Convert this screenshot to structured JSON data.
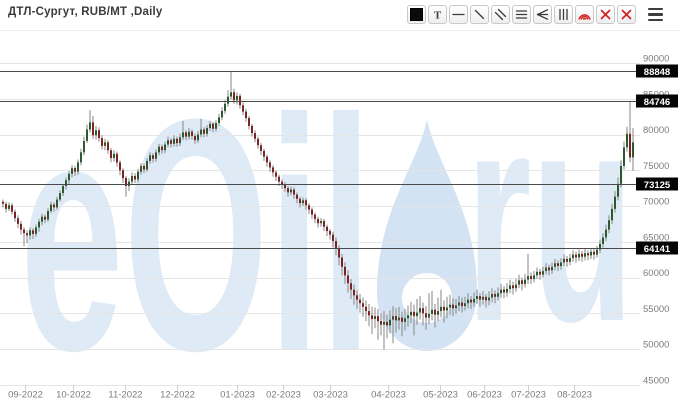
{
  "header": {
    "title": "ДТЛ-Сургут, RUB/MT ,Daily"
  },
  "toolbar": {
    "buttons": [
      {
        "name": "color-swatch-button",
        "icon": "black-square-icon"
      },
      {
        "name": "text-tool-button",
        "icon": "text-icon",
        "label": "T"
      },
      {
        "name": "horizontal-line-tool-button",
        "icon": "horizontal-line-icon"
      },
      {
        "name": "trend-line-tool-button",
        "icon": "trend-line-icon"
      },
      {
        "name": "parallel-channel-tool-button",
        "icon": "parallel-lines-icon"
      },
      {
        "name": "fib-levels-tool-button",
        "icon": "horizontal-levels-icon"
      },
      {
        "name": "fan-lines-tool-button",
        "icon": "fan-lines-icon"
      },
      {
        "name": "vertical-lines-tool-button",
        "icon": "vertical-lines-icon"
      },
      {
        "name": "fib-arcs-tool-button",
        "icon": "arcs-icon"
      },
      {
        "name": "delete-drawing-button",
        "icon": "red-cross-icon"
      },
      {
        "name": "delete-all-drawings-button",
        "icon": "red-cross-icon"
      }
    ],
    "menu": {
      "name": "menu-button",
      "icon": "hamburger-icon"
    }
  },
  "watermark": {
    "left": "eOil",
    "right": "ru"
  },
  "colors": {
    "candle_up": "#2d5a2d",
    "candle_down": "#7d2323",
    "wick": "#858585",
    "grid": "#e5e5e5",
    "level_line": "#4a4a4a",
    "tag_bg": "#050505",
    "tag_text": "#ffffff",
    "axis_text": "#7c7c7c",
    "toolbar_red": "#d41f1f",
    "watermark_text": "#dbe8f6",
    "watermark_drop": "#cfe1f2"
  },
  "chart_data": {
    "type": "candlestick",
    "title": "ДТЛ-Сургут, RUB/MT ,Daily",
    "instrument": "ДТЛ-Сургут",
    "unit": "RUB/MT",
    "timeframe": "Daily",
    "grid": true,
    "legend_position": "none",
    "y_axis": {
      "min": 45000,
      "max": 90000,
      "step": 5000,
      "ticks": [
        90000,
        85000,
        80000,
        75000,
        70000,
        65000,
        60000,
        55000,
        50000,
        45000
      ]
    },
    "x_axis": {
      "labels": [
        "09-2022",
        "10-2022",
        "11-2022",
        "12-2022",
        "01-2023",
        "02-2023",
        "03-2023",
        "04-2023",
        "05-2023",
        "06-2023",
        "07-2023",
        "08-2023"
      ],
      "tick_x": [
        25,
        73,
        125,
        177,
        237,
        283,
        330,
        388,
        440,
        484,
        528,
        574
      ]
    },
    "levels": [
      {
        "price": 88848,
        "label": "88848"
      },
      {
        "price": 84746,
        "label": "84746"
      },
      {
        "price": 73125,
        "label": "73125"
      },
      {
        "price": 64141,
        "label": "64141"
      }
    ],
    "candles": {
      "first_open": 70600,
      "format": [
        "close",
        "high",
        "low"
      ],
      "open_rule": "open equals previous close",
      "data": [
        [
          70300,
          70900,
          69800
        ],
        [
          69600,
          70600,
          69100
        ],
        [
          70100,
          70500,
          69300
        ],
        [
          69200,
          70400,
          68800
        ],
        [
          68300,
          69500,
          67800
        ],
        [
          67500,
          68700,
          66900
        ],
        [
          66700,
          67900,
          66000
        ],
        [
          66200,
          67000,
          64400
        ],
        [
          65900,
          66600,
          64800
        ],
        [
          66600,
          67000,
          65300
        ],
        [
          66100,
          66900,
          65400
        ],
        [
          67000,
          67400,
          65700
        ],
        [
          67800,
          68200,
          66400
        ],
        [
          68500,
          68900,
          67300
        ],
        [
          68100,
          68800,
          67600
        ],
        [
          69300,
          69700,
          67800
        ],
        [
          70200,
          70600,
          69000
        ],
        [
          69800,
          70500,
          69200
        ],
        [
          70900,
          71300,
          69500
        ],
        [
          71800,
          72200,
          70600
        ],
        [
          72800,
          73100,
          71400
        ],
        [
          73600,
          74000,
          72300
        ],
        [
          74500,
          74900,
          73100
        ],
        [
          75300,
          75700,
          74000
        ],
        [
          74800,
          75600,
          74200
        ],
        [
          76100,
          76500,
          74400
        ],
        [
          77500,
          78000,
          75700
        ],
        [
          79100,
          79700,
          77100
        ],
        [
          80700,
          81400,
          78800
        ],
        [
          81700,
          83400,
          80300
        ],
        [
          79900,
          82600,
          79400
        ],
        [
          80600,
          81200,
          79300
        ],
        [
          79500,
          81000,
          79000
        ],
        [
          78400,
          79900,
          77900
        ],
        [
          78900,
          79400,
          77800
        ],
        [
          77800,
          79200,
          77300
        ],
        [
          76700,
          78100,
          76100
        ],
        [
          77300,
          77800,
          76200
        ],
        [
          76100,
          77600,
          75500
        ],
        [
          75000,
          76400,
          74300
        ],
        [
          73900,
          75300,
          73200
        ],
        [
          72800,
          74200,
          71300
        ],
        [
          73400,
          73900,
          72100
        ],
        [
          74200,
          74700,
          73000
        ],
        [
          73700,
          74600,
          73200
        ],
        [
          74800,
          75200,
          73300
        ],
        [
          75600,
          76000,
          74400
        ],
        [
          75100,
          75900,
          74600
        ],
        [
          76300,
          76700,
          74800
        ],
        [
          77100,
          77500,
          75900
        ],
        [
          76600,
          77400,
          76100
        ],
        [
          77500,
          77900,
          76200
        ],
        [
          78300,
          78700,
          77100
        ],
        [
          77800,
          78600,
          77300
        ],
        [
          78600,
          79000,
          77400
        ],
        [
          79200,
          79700,
          78200
        ],
        [
          78700,
          79500,
          78200
        ],
        [
          79400,
          79900,
          78300
        ],
        [
          78800,
          79700,
          78300
        ],
        [
          79600,
          80100,
          78400
        ],
        [
          80300,
          81900,
          79200
        ],
        [
          79700,
          80600,
          79200
        ],
        [
          80400,
          80900,
          79300
        ],
        [
          79800,
          80700,
          79300
        ],
        [
          79200,
          80100,
          78700
        ],
        [
          80000,
          80500,
          78800
        ],
        [
          80700,
          82200,
          79600
        ],
        [
          80100,
          81000,
          79600
        ],
        [
          80900,
          81300,
          79700
        ],
        [
          81500,
          81900,
          80500
        ],
        [
          80800,
          81700,
          80300
        ],
        [
          81600,
          82000,
          80400
        ],
        [
          82400,
          82900,
          81200
        ],
        [
          83300,
          83800,
          82000
        ],
        [
          84300,
          84800,
          82900
        ],
        [
          85300,
          86200,
          83900
        ],
        [
          85900,
          88800,
          84900
        ],
        [
          84800,
          86400,
          84300
        ],
        [
          85400,
          85900,
          84200
        ],
        [
          84100,
          85700,
          83600
        ],
        [
          83200,
          84500,
          82700
        ],
        [
          82300,
          83600,
          81800
        ],
        [
          81200,
          82600,
          80700
        ],
        [
          80200,
          81500,
          79700
        ],
        [
          79400,
          80600,
          78900
        ],
        [
          78500,
          79700,
          78000
        ],
        [
          77700,
          78800,
          77100
        ],
        [
          76900,
          78000,
          76300
        ],
        [
          76100,
          77200,
          75500
        ],
        [
          75400,
          76400,
          74800
        ],
        [
          74700,
          75700,
          74100
        ],
        [
          74100,
          75000,
          73500
        ],
        [
          73400,
          74400,
          72800
        ],
        [
          73000,
          73700,
          72400
        ],
        [
          72500,
          73300,
          72000
        ],
        [
          71900,
          72800,
          71300
        ],
        [
          72300,
          72700,
          71500
        ],
        [
          71600,
          72600,
          71000
        ],
        [
          71000,
          71900,
          70400
        ],
        [
          70400,
          71300,
          69800
        ],
        [
          70800,
          71200,
          70000
        ],
        [
          70100,
          71100,
          69500
        ],
        [
          69500,
          70400,
          68900
        ],
        [
          68800,
          69800,
          68200
        ],
        [
          68200,
          69100,
          67600
        ],
        [
          67600,
          68500,
          67000
        ],
        [
          67900,
          68300,
          67100
        ],
        [
          67100,
          68200,
          66500
        ],
        [
          66500,
          67400,
          65800
        ],
        [
          66000,
          66800,
          65300
        ],
        [
          65100,
          66400,
          64200
        ],
        [
          64000,
          65600,
          63100
        ],
        [
          62800,
          64500,
          61700
        ],
        [
          61500,
          63300,
          60300
        ],
        [
          60300,
          62100,
          59100
        ],
        [
          59200,
          61000,
          57900
        ],
        [
          58300,
          59800,
          57000
        ],
        [
          57500,
          59000,
          56200
        ],
        [
          56900,
          58200,
          55600
        ],
        [
          56400,
          57700,
          55100
        ],
        [
          55900,
          57200,
          54500
        ],
        [
          55300,
          56800,
          53900
        ],
        [
          54700,
          56300,
          53200
        ],
        [
          54200,
          55900,
          52100
        ],
        [
          54600,
          55800,
          52900
        ],
        [
          53900,
          55600,
          51300
        ],
        [
          53400,
          55000,
          51900
        ],
        [
          53800,
          55300,
          49900
        ],
        [
          53300,
          54800,
          51500
        ],
        [
          54100,
          55400,
          52200
        ],
        [
          54600,
          56000,
          50800
        ],
        [
          54000,
          55700,
          52300
        ],
        [
          54400,
          55900,
          52700
        ],
        [
          53800,
          55200,
          51800
        ],
        [
          54300,
          55600,
          52600
        ],
        [
          54700,
          56100,
          53100
        ],
        [
          55200,
          56600,
          53600
        ],
        [
          54600,
          56200,
          51900
        ],
        [
          55100,
          57000,
          53400
        ],
        [
          55700,
          57400,
          54100
        ],
        [
          55000,
          56500,
          53300
        ],
        [
          54400,
          56000,
          52700
        ],
        [
          54900,
          57800,
          53500
        ],
        [
          55500,
          58100,
          54000
        ],
        [
          54800,
          56300,
          53000
        ],
        [
          55300,
          57200,
          53900
        ],
        [
          55900,
          58300,
          54400
        ],
        [
          55400,
          56800,
          53700
        ],
        [
          55800,
          57300,
          54300
        ],
        [
          56200,
          57600,
          54800
        ],
        [
          55700,
          57100,
          54600
        ],
        [
          56100,
          57000,
          54900
        ],
        [
          56500,
          57400,
          55300
        ],
        [
          56000,
          57200,
          55100
        ],
        [
          56400,
          57300,
          55400
        ],
        [
          56900,
          57800,
          55700
        ],
        [
          56500,
          57400,
          55600
        ],
        [
          57000,
          57900,
          55900
        ],
        [
          57400,
          58300,
          56300
        ],
        [
          56900,
          57800,
          55900
        ],
        [
          57300,
          58100,
          56200
        ],
        [
          56800,
          57700,
          55800
        ],
        [
          57200,
          58100,
          56100
        ],
        [
          57700,
          58500,
          56500
        ],
        [
          57300,
          58200,
          56400
        ],
        [
          57800,
          58600,
          56800
        ],
        [
          58300,
          59100,
          57200
        ],
        [
          57900,
          58800,
          57100
        ],
        [
          58400,
          59200,
          57300
        ],
        [
          58900,
          59700,
          57800
        ],
        [
          58500,
          59400,
          57600
        ],
        [
          59000,
          59800,
          58000
        ],
        [
          59600,
          60400,
          58500
        ],
        [
          59100,
          60000,
          58200
        ],
        [
          59700,
          60500,
          58600
        ],
        [
          60200,
          63300,
          59100
        ],
        [
          59800,
          60700,
          59100
        ],
        [
          60300,
          60900,
          59300
        ],
        [
          60800,
          61400,
          59800
        ],
        [
          60400,
          61200,
          59700
        ],
        [
          60900,
          61500,
          60000
        ],
        [
          61400,
          62000,
          60400
        ],
        [
          61000,
          61800,
          60300
        ],
        [
          61500,
          62100,
          60500
        ],
        [
          62000,
          62600,
          61000
        ],
        [
          61600,
          62400,
          60900
        ],
        [
          62100,
          62700,
          61100
        ],
        [
          62600,
          63200,
          61600
        ],
        [
          62200,
          63000,
          61500
        ],
        [
          62700,
          63300,
          61700
        ],
        [
          63200,
          63800,
          62200
        ],
        [
          62800,
          63600,
          62100
        ],
        [
          63300,
          63900,
          62300
        ],
        [
          62900,
          63700,
          62200
        ],
        [
          63400,
          64000,
          62400
        ],
        [
          63100,
          63800,
          62400
        ],
        [
          63600,
          64100,
          62600
        ],
        [
          63200,
          64000,
          62500
        ],
        [
          63900,
          64400,
          62800
        ],
        [
          64700,
          65300,
          63400
        ],
        [
          65600,
          66200,
          64200
        ],
        [
          66700,
          67400,
          65100
        ],
        [
          68000,
          68700,
          66200
        ],
        [
          69600,
          70300,
          67500
        ],
        [
          71300,
          72100,
          69100
        ],
        [
          73100,
          74000,
          70800
        ],
        [
          75600,
          76400,
          72600
        ],
        [
          78200,
          79000,
          75100
        ],
        [
          80100,
          81100,
          77600
        ],
        [
          76800,
          84700,
          76100
        ],
        [
          78900,
          80900,
          74900
        ]
      ]
    }
  }
}
